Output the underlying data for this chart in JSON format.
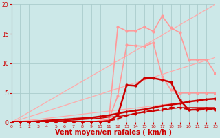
{
  "bg_color": "#cce8e8",
  "grid_color": "#aacccc",
  "xlabel": "Vent moyen/en rafales ( km/h )",
  "xlabel_color": "#cc0000",
  "xlabel_fontsize": 7,
  "tick_color": "#cc0000",
  "xlim": [
    0,
    23
  ],
  "ylim": [
    0,
    20
  ],
  "xticks": [
    0,
    1,
    2,
    3,
    4,
    5,
    6,
    7,
    8,
    9,
    10,
    11,
    12,
    13,
    14,
    15,
    16,
    17,
    18,
    19,
    20,
    21,
    22,
    23
  ],
  "yticks": [
    0,
    5,
    10,
    15,
    20
  ],
  "x": [
    0,
    1,
    2,
    3,
    4,
    5,
    6,
    7,
    8,
    9,
    10,
    11,
    12,
    13,
    14,
    15,
    16,
    17,
    18,
    19,
    20,
    21,
    22,
    23
  ],
  "line_top_straight": [
    0,
    0.87,
    1.74,
    2.61,
    3.48,
    4.35,
    5.22,
    6.09,
    6.96,
    7.83,
    8.7,
    9.57,
    10.43,
    11.3,
    12.17,
    13.04,
    13.91,
    14.78,
    15.65,
    16.52,
    17.39,
    18.26,
    19.13,
    20.0
  ],
  "line_mid_straight": [
    0,
    0.48,
    0.96,
    1.43,
    1.91,
    2.39,
    2.87,
    3.35,
    3.83,
    4.3,
    4.78,
    5.26,
    5.74,
    6.22,
    6.7,
    7.17,
    7.65,
    8.13,
    8.61,
    9.09,
    9.57,
    10.04,
    10.52,
    11.0
  ],
  "line_low_straight": [
    0,
    0.17,
    0.35,
    0.52,
    0.7,
    0.87,
    1.04,
    1.22,
    1.39,
    1.57,
    1.74,
    1.91,
    2.09,
    2.26,
    2.43,
    2.61,
    2.78,
    2.96,
    3.13,
    3.3,
    3.48,
    3.65,
    3.83,
    4.0
  ],
  "line_pink_hi_y": [
    0,
    0,
    0,
    0,
    0,
    0,
    0,
    0,
    0,
    0,
    0.3,
    0.5,
    16.2,
    15.5,
    15.5,
    16.2,
    15.4,
    18.0,
    16.0,
    15.2,
    10.6,
    10.6,
    10.6,
    8.3
  ],
  "line_pink_lo_y": [
    0,
    0,
    0,
    0,
    0,
    0,
    0,
    0,
    0,
    0,
    0.3,
    0.5,
    4.5,
    13.1,
    13.0,
    12.9,
    13.5,
    7.8,
    5.5,
    5.0,
    5.0,
    5.0,
    5.0,
    5.0
  ],
  "line_red_hi_y": [
    0,
    0,
    0,
    0,
    0,
    0,
    0,
    0,
    0,
    0,
    0,
    0.2,
    1.2,
    6.3,
    6.2,
    7.5,
    7.5,
    7.2,
    6.8,
    3.8,
    2.1,
    2.2,
    2.4,
    2.3
  ],
  "line_red_mid_y": [
    0,
    0,
    0,
    0,
    0,
    0,
    0,
    0,
    0,
    0,
    0.1,
    0.3,
    0.6,
    1.2,
    1.5,
    1.8,
    2.0,
    2.2,
    2.5,
    2.5,
    2.2,
    2.1,
    2.2,
    2.2
  ],
  "line_red_lo_y": [
    0,
    0,
    0.1,
    0.2,
    0.3,
    0.4,
    0.5,
    0.6,
    0.7,
    0.8,
    1.0,
    1.2,
    1.5,
    1.8,
    2.0,
    2.2,
    2.5,
    2.8,
    3.0,
    3.2,
    3.5,
    3.7,
    3.9,
    4.0
  ],
  "line_red_floor_y": [
    0,
    0,
    0.05,
    0.1,
    0.15,
    0.2,
    0.3,
    0.4,
    0.5,
    0.6,
    0.7,
    0.9,
    1.0,
    1.2,
    1.5,
    1.7,
    1.9,
    2.1,
    2.3,
    2.5,
    2.5,
    2.5,
    2.5,
    2.5
  ],
  "pink_color": "#ff9999",
  "red_dark_color": "#cc0000",
  "red_mid_color": "#dd2222",
  "straight_color": "#ffaaaa"
}
